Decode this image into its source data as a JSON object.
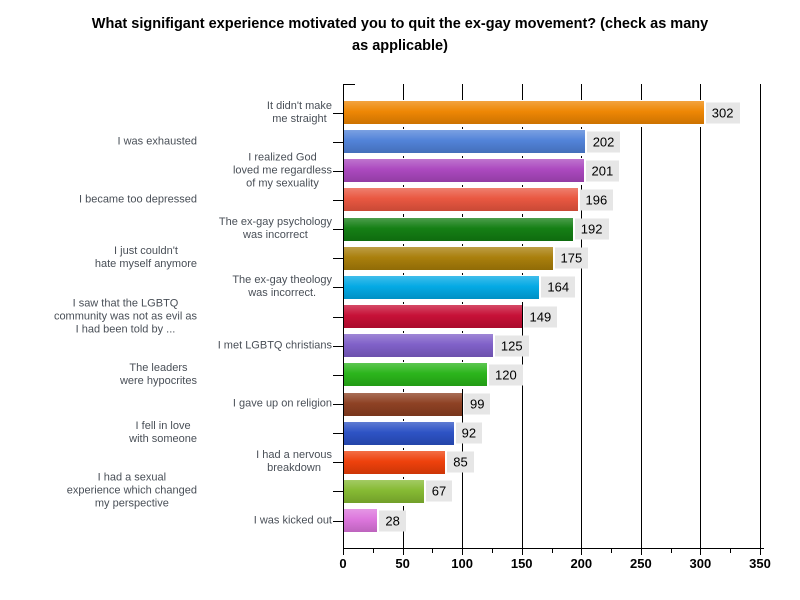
{
  "chart_data": {
    "type": "bar",
    "orientation": "horizontal",
    "title": "What signifigant experience motivated you to quit the ex-gay movement? (check as many as applicable)",
    "title_display": "What signifigant experience motivated you to quit the ex-gay movement? (check as many\nas applicable)",
    "categories": [
      "It didn't make me straight",
      "I was exhausted",
      "I realized God loved me regardless of my sexuality",
      "I became too depressed",
      "The ex-gay psychology was incorrect",
      "I just couldn't hate myself anymore",
      "The ex-gay theology was incorrect.",
      "I saw that the LGBTQ community was not as evil as I had been told by ...",
      "I met LGBTQ christians",
      "The leaders were hypocrites",
      "I gave up on religion",
      "I fell in love with someone",
      "I had a nervous breakdown",
      "I had a sexual experience which changed my perspective",
      "I was kicked out"
    ],
    "category_display": [
      "It didn't make\nme straight",
      "I was exhausted",
      "I realized God\nloved me regardless\nof my sexuality",
      "I became too depressed",
      "The ex-gay psychology\nwas incorrect",
      "I just couldn't\nhate myself anymore",
      "The ex-gay theology\nwas incorrect.",
      "I saw that the LGBTQ\ncommunity was not as evil as\nI had been told by ...",
      "I met LGBTQ christians",
      "The leaders\nwere hypocrites",
      "I gave up on religion",
      "I fell in love\nwith someone",
      "I had a nervous\nbreakdown",
      "I had a sexual\nexperience which changed\nmy perspective",
      "I was kicked out"
    ],
    "values": [
      302,
      202,
      201,
      196,
      192,
      175,
      164,
      149,
      125,
      120,
      99,
      92,
      85,
      67,
      28
    ],
    "bar_colors": [
      "#EE8500",
      "#4F81D8",
      "#AA46BE",
      "#E9553E",
      "#117D11",
      "#A87D08",
      "#00A8E4",
      "#C60D34",
      "#7E5EC8",
      "#28B418",
      "#8C3E20",
      "#2A50C4",
      "#EE3E08",
      "#84B930",
      "#DC74DC"
    ],
    "xlim": [
      0,
      350
    ],
    "x_ticks": [
      0,
      50,
      100,
      150,
      200,
      250,
      300,
      350
    ],
    "x_minor_tick_interval": 25,
    "grid": true,
    "legend": "none",
    "value_labels": true,
    "value_label_bg": "#E6E6E6",
    "axis_color": "#000000",
    "category_label_color": "#494f57",
    "background": "#FFFFFF"
  }
}
